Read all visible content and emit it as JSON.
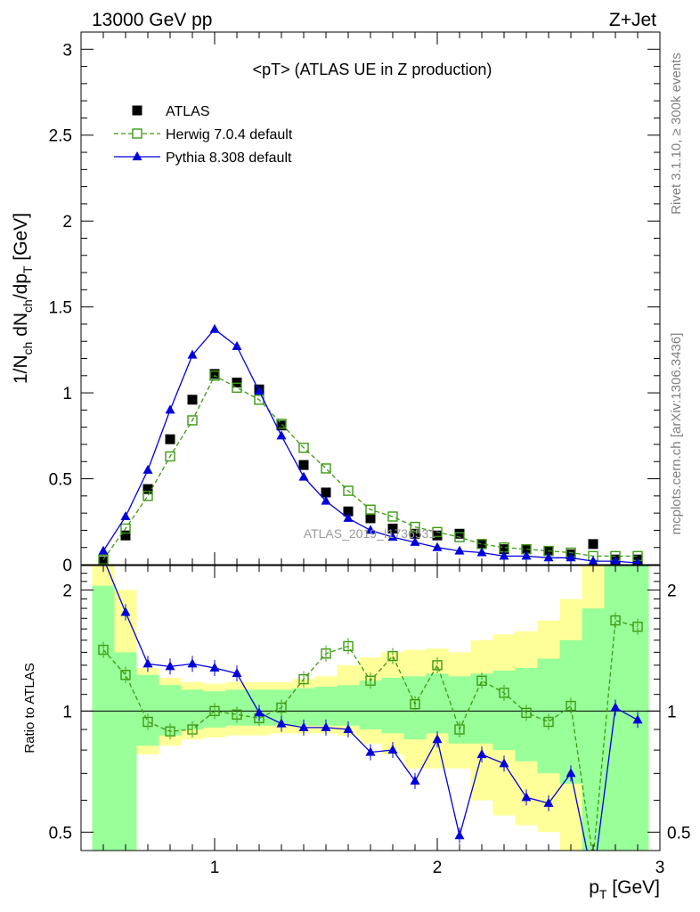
{
  "header": {
    "energy_label": "13000 GeV pp",
    "process_label": "Z+Jet"
  },
  "side_labels": {
    "rivet": "Rivet 3.1.10, ≥ 300k events",
    "mcplots": "mcplots.cern.ch [arXiv:1306.3436]"
  },
  "chart_data": [
    {
      "type": "scatter",
      "panel": "main",
      "title": "<pT> (ATLAS UE in Z production)",
      "xlabel": "p_T [GeV]",
      "ylabel": "1/N_ch dN_ch/dp_T [GeV]",
      "watermark": "ATLAS_2019_I1736531",
      "xlim": [
        0.4,
        3.0
      ],
      "ylim": [
        0,
        3.1
      ],
      "x_ticks": [
        1,
        2,
        3
      ],
      "y_ticks": [
        0,
        0.5,
        1,
        1.5,
        2,
        2.5,
        3
      ],
      "y_tick_labels": [
        "0",
        "0.5",
        "1",
        "1.5",
        "2",
        "2.5",
        "3"
      ],
      "legend_position": "top-left",
      "x": [
        0.5,
        0.6,
        0.7,
        0.8,
        0.9,
        1.0,
        1.1,
        1.2,
        1.3,
        1.4,
        1.5,
        1.6,
        1.7,
        1.8,
        1.9,
        2.0,
        2.1,
        2.2,
        2.3,
        2.4,
        2.5,
        2.6,
        2.7,
        2.8,
        2.9
      ],
      "series": [
        {
          "name": "ATLAS",
          "style": "data",
          "color": "#000000",
          "values": [
            0.02,
            0.17,
            0.44,
            0.73,
            0.96,
            1.11,
            1.06,
            1.02,
            0.81,
            0.58,
            0.42,
            0.31,
            0.27,
            0.21,
            0.18,
            0.17,
            0.18,
            0.12,
            0.09,
            0.09,
            0.08,
            0.06,
            0.12,
            0.03,
            0.03
          ]
        },
        {
          "name": "Herwig 7.0.4 default",
          "style": "open-square-dashed",
          "color": "#3c9a12",
          "values": [
            0.03,
            0.21,
            0.4,
            0.63,
            0.84,
            1.1,
            1.03,
            0.96,
            0.82,
            0.68,
            0.56,
            0.43,
            0.32,
            0.28,
            0.22,
            0.19,
            0.16,
            0.12,
            0.1,
            0.09,
            0.08,
            0.07,
            0.05,
            0.05,
            0.05
          ]
        },
        {
          "name": "Pythia 8.308 default",
          "style": "filled-triangle-solid",
          "color": "#0000dd",
          "values": [
            0.08,
            0.28,
            0.55,
            0.9,
            1.22,
            1.37,
            1.27,
            1.01,
            0.75,
            0.51,
            0.37,
            0.27,
            0.2,
            0.16,
            0.13,
            0.1,
            0.08,
            0.07,
            0.05,
            0.05,
            0.04,
            0.04,
            0.02,
            0.02,
            0.01
          ]
        }
      ]
    },
    {
      "type": "line",
      "panel": "ratio",
      "xlabel": "p_T [GeV]",
      "ylabel": "Ratio to ATLAS",
      "xlim": [
        0.4,
        3.0
      ],
      "ylim": [
        0.45,
        2.3
      ],
      "log_y": true,
      "x_ticks": [
        1,
        2,
        3
      ],
      "y_ticks": [
        0.5,
        1,
        2
      ],
      "y_tick_labels": [
        "0.5",
        "1",
        "2"
      ],
      "reference_line": 1,
      "bin_edges": [
        0.45,
        0.55,
        0.65,
        0.75,
        0.85,
        0.95,
        1.05,
        1.15,
        1.25,
        1.35,
        1.45,
        1.55,
        1.65,
        1.75,
        1.85,
        1.95,
        2.05,
        2.15,
        2.25,
        2.35,
        2.45,
        2.55,
        2.65,
        2.75,
        2.85,
        2.95
      ],
      "bands": [
        {
          "name": "stat",
          "color": "#99ff99",
          "low": [
            0.45,
            0.45,
            0.82,
            0.87,
            0.9,
            0.91,
            0.92,
            0.92,
            0.92,
            0.92,
            0.92,
            0.92,
            0.9,
            0.88,
            0.85,
            0.88,
            0.83,
            0.83,
            0.8,
            0.75,
            0.7,
            0.66,
            0.45,
            0.45,
            0.45
          ],
          "high": [
            2.05,
            1.4,
            1.23,
            1.16,
            1.13,
            1.12,
            1.13,
            1.13,
            1.13,
            1.14,
            1.15,
            1.16,
            1.19,
            1.21,
            1.22,
            1.24,
            1.22,
            1.24,
            1.26,
            1.28,
            1.35,
            1.5,
            1.8,
            2.3,
            2.3
          ]
        },
        {
          "name": "total",
          "color": "#ffff99",
          "low": [
            0.45,
            0.6,
            0.78,
            0.82,
            0.85,
            0.86,
            0.87,
            0.87,
            0.88,
            0.88,
            0.88,
            0.87,
            0.83,
            0.78,
            0.72,
            0.72,
            0.72,
            0.6,
            0.55,
            0.52,
            0.5,
            0.45,
            0.45,
            0.45,
            0.45
          ],
          "high": [
            2.3,
            2.0,
            1.28,
            1.21,
            1.18,
            1.17,
            1.18,
            1.18,
            1.18,
            1.2,
            1.22,
            1.3,
            1.36,
            1.4,
            1.42,
            1.43,
            1.4,
            1.5,
            1.55,
            1.58,
            1.68,
            1.9,
            2.3,
            2.3,
            2.3
          ]
        }
      ],
      "x": [
        0.5,
        0.6,
        0.7,
        0.8,
        0.9,
        1.0,
        1.1,
        1.2,
        1.3,
        1.4,
        1.5,
        1.6,
        1.7,
        1.8,
        1.9,
        2.0,
        2.1,
        2.2,
        2.3,
        2.4,
        2.5,
        2.6,
        2.7,
        2.8,
        2.9
      ],
      "series": [
        {
          "name": "Herwig 7.0.4 default",
          "style": "open-square-dashed",
          "color": "#3c9a12",
          "values": [
            1.42,
            1.23,
            0.94,
            0.89,
            0.9,
            1.0,
            0.98,
            0.96,
            1.02,
            1.2,
            1.39,
            1.45,
            1.19,
            1.37,
            1.04,
            1.3,
            0.9,
            1.19,
            1.11,
            0.99,
            0.94,
            1.03,
            0.43,
            1.68,
            1.62
          ]
        },
        {
          "name": "Pythia 8.308 default",
          "style": "filled-triangle-solid",
          "color": "#0000dd",
          "values": [
            2.4,
            1.76,
            1.31,
            1.29,
            1.31,
            1.28,
            1.24,
            0.99,
            0.93,
            0.91,
            0.91,
            0.9,
            0.79,
            0.8,
            0.67,
            0.85,
            0.49,
            0.78,
            0.74,
            0.61,
            0.59,
            0.7,
            0.38,
            1.02,
            0.95
          ]
        }
      ]
    }
  ]
}
